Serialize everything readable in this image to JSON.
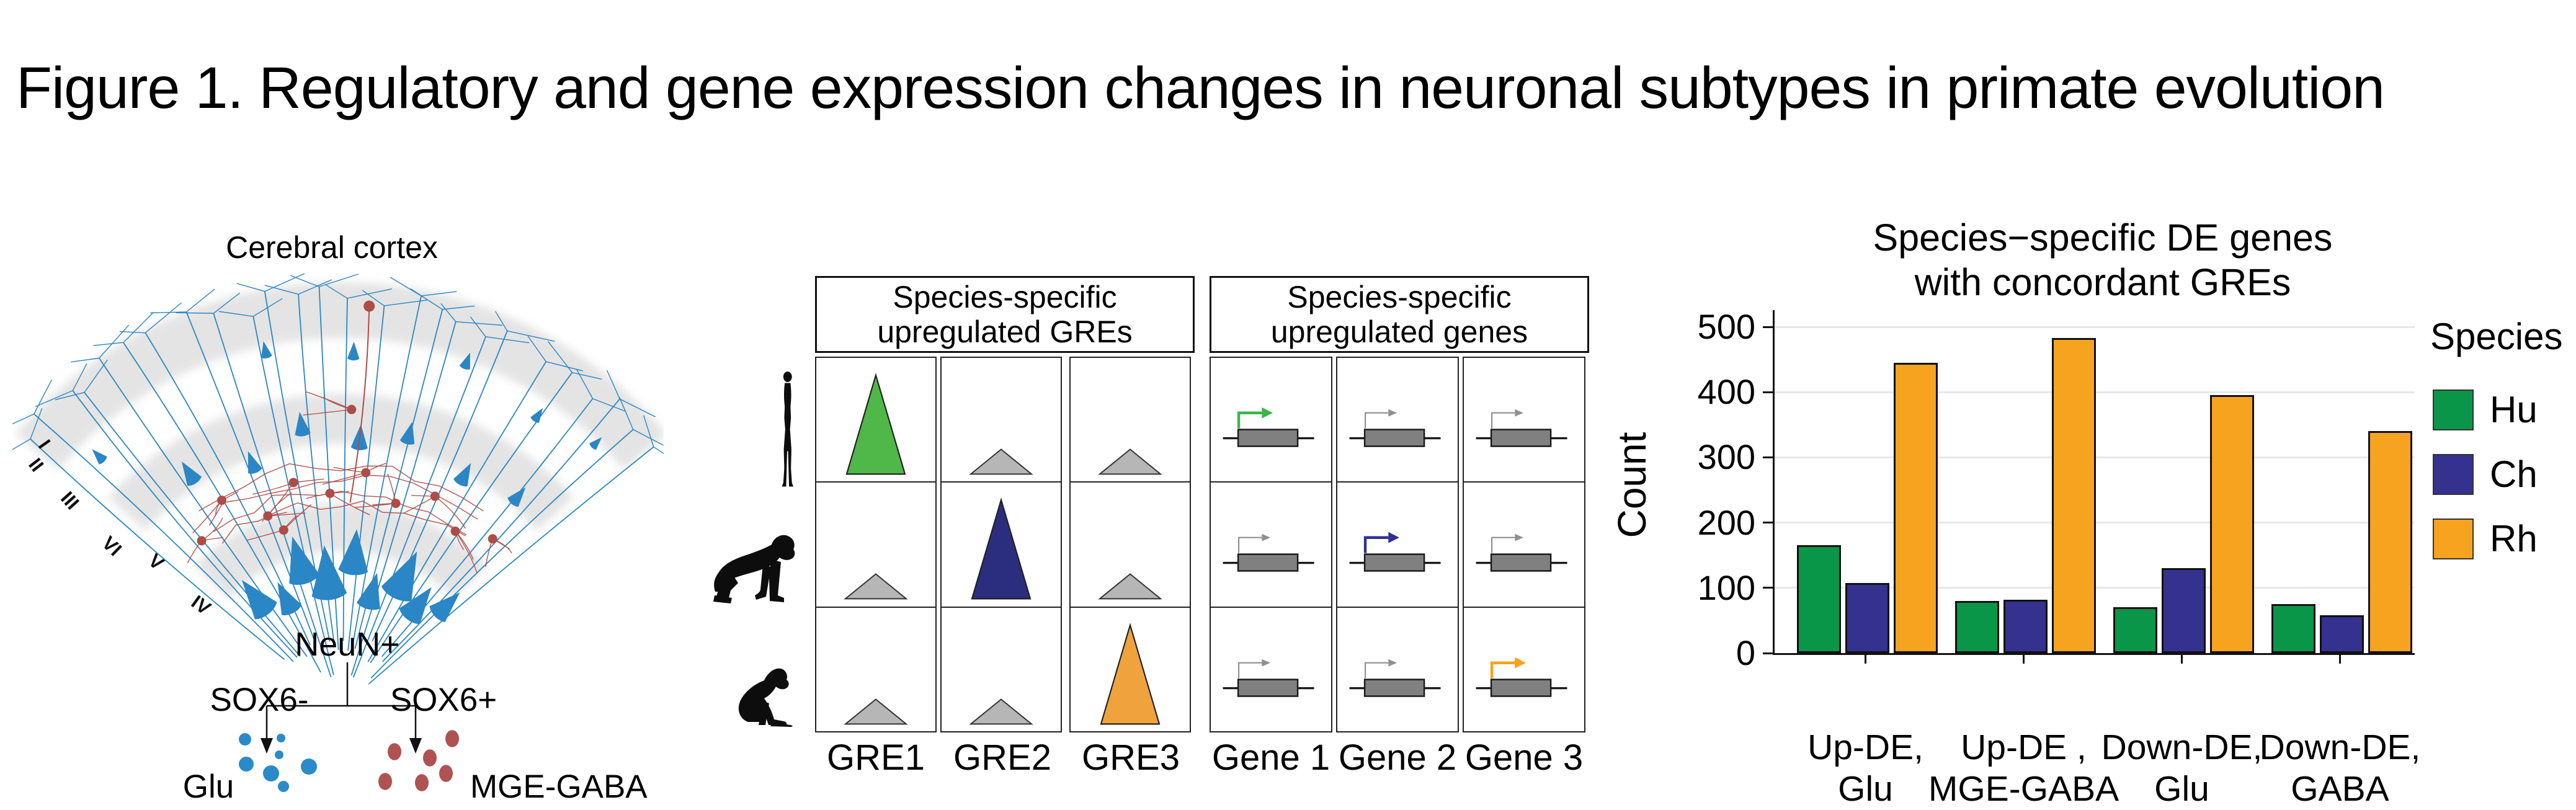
{
  "figure_title": "Figure 1. Regulatory and gene expression changes in neuronal subtypes in primate evolution",
  "colors": {
    "neuron_blue": "#2B86C5",
    "neuron_red": "#AE4C47",
    "dot_blue": "#2B8BC9",
    "dot_red": "#AE5352",
    "band_gray": "#E4E4E4",
    "triangle_green": "#4FB848",
    "triangle_navy": "#2B2D7E",
    "triangle_orange": "#F0A33C",
    "triangle_gray": "#B6B6B6",
    "arrow_green": "#3CB54A",
    "arrow_navy": "#2E3192",
    "arrow_orange": "#F9A21D",
    "arrow_gray": "#909090",
    "gene_body_gray": "#808080",
    "hu_green": "#0A9649",
    "ch_navy": "#34318F",
    "rh_orange": "#F6A41F"
  },
  "cortex_panel": {
    "title": "Cerebral cortex",
    "layer_labels": [
      "I",
      "II",
      "III",
      "VI",
      "V",
      "IV"
    ],
    "sort_label": "NeuN+",
    "left_branch": {
      "label": "SOX6-",
      "cell_type": "Glu"
    },
    "right_branch": {
      "label": "SOX6+",
      "cell_type": "MGE-GABA"
    }
  },
  "gre_panel": {
    "header_line1": "Species-specific",
    "header_line2": "upregulated GREs",
    "rows": [
      "human",
      "chimpanzee",
      "macaque"
    ],
    "columns": [
      "GRE1",
      "GRE2",
      "GRE3"
    ],
    "matrix": [
      [
        "green",
        "small",
        "small"
      ],
      [
        "small",
        "navy",
        "small"
      ],
      [
        "small",
        "small",
        "orange"
      ]
    ]
  },
  "gene_panel": {
    "header_line1": "Species-specific",
    "header_line2": "upregulated genes",
    "columns": [
      "Gene 1",
      "Gene 2",
      "Gene 3"
    ],
    "matrix": [
      [
        "green",
        "gray",
        "gray"
      ],
      [
        "gray",
        "navy",
        "gray"
      ],
      [
        "gray",
        "gray",
        "orange"
      ]
    ]
  },
  "chart_data": {
    "type": "bar",
    "title_line1": "Species−specific DE genes",
    "title_line2": "with concordant GREs",
    "ylabel": "Count",
    "ylim": [
      0,
      500
    ],
    "yticks": [
      0,
      100,
      200,
      300,
      400,
      500
    ],
    "grid": "horizontal-light-gray",
    "legend_title": "Species",
    "legend_position": "right",
    "categories": [
      [
        "Up-DE,",
        "Glu"
      ],
      [
        "Up-DE ,",
        "MGE-GABA"
      ],
      [
        "Down-DE,",
        "Glu"
      ],
      [
        "Down-DE,",
        "GABA"
      ]
    ],
    "series": [
      {
        "name": "Hu",
        "color": "#0A9649",
        "values": [
          165,
          80,
          70,
          75
        ]
      },
      {
        "name": "Ch",
        "color": "#34318F",
        "values": [
          107,
          82,
          130,
          58
        ]
      },
      {
        "name": "Rh",
        "color": "#F6A41F",
        "values": [
          445,
          483,
          395,
          340
        ]
      }
    ]
  }
}
